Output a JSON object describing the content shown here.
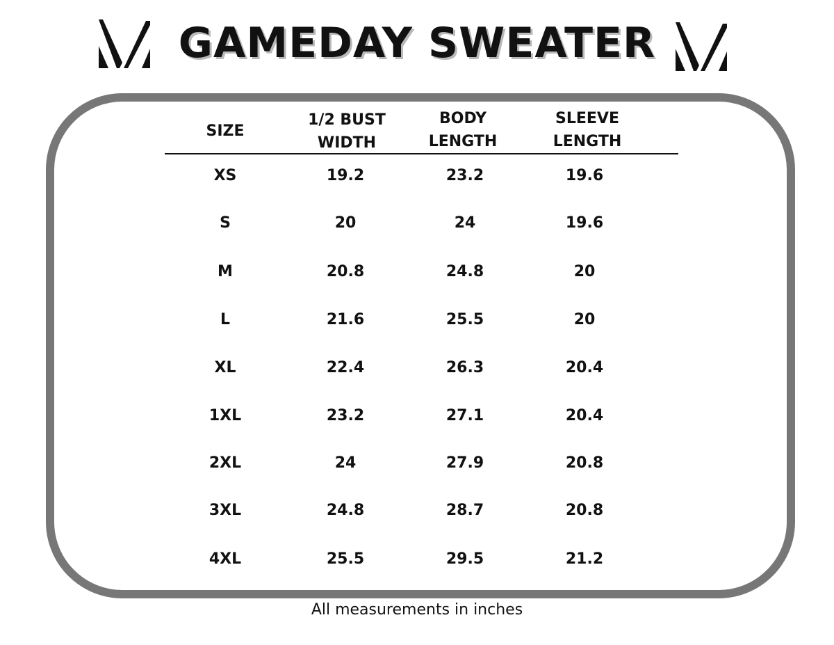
{
  "title": "GAMEDAY SWEATER",
  "logo_icon": "v-mark-icon",
  "colors": {
    "frame_border": "#777777",
    "text": "#111111",
    "title_shadow": "#b9b9b9"
  },
  "table": {
    "headers": [
      {
        "line1": "SIZE",
        "line2": ""
      },
      {
        "line1": "1/2 BUST",
        "line2": "WIDTH"
      },
      {
        "line1": "BODY",
        "line2": "LENGTH"
      },
      {
        "line1": "SLEEVE",
        "line2": "LENGTH"
      }
    ],
    "rows": [
      [
        "XS",
        "19.2",
        "23.2",
        "19.6"
      ],
      [
        "S",
        "20",
        "24",
        "19.6"
      ],
      [
        "M",
        "20.8",
        "24.8",
        "20"
      ],
      [
        "L",
        "21.6",
        "25.5",
        "20"
      ],
      [
        "XL",
        "22.4",
        "26.3",
        "20.4"
      ],
      [
        "1XL",
        "23.2",
        "27.1",
        "20.4"
      ],
      [
        "2XL",
        "24",
        "27.9",
        "20.8"
      ],
      [
        "3XL",
        "24.8",
        "28.7",
        "20.8"
      ],
      [
        "4XL",
        "25.5",
        "29.5",
        "21.2"
      ]
    ]
  },
  "footnote": "All measurements in inches"
}
